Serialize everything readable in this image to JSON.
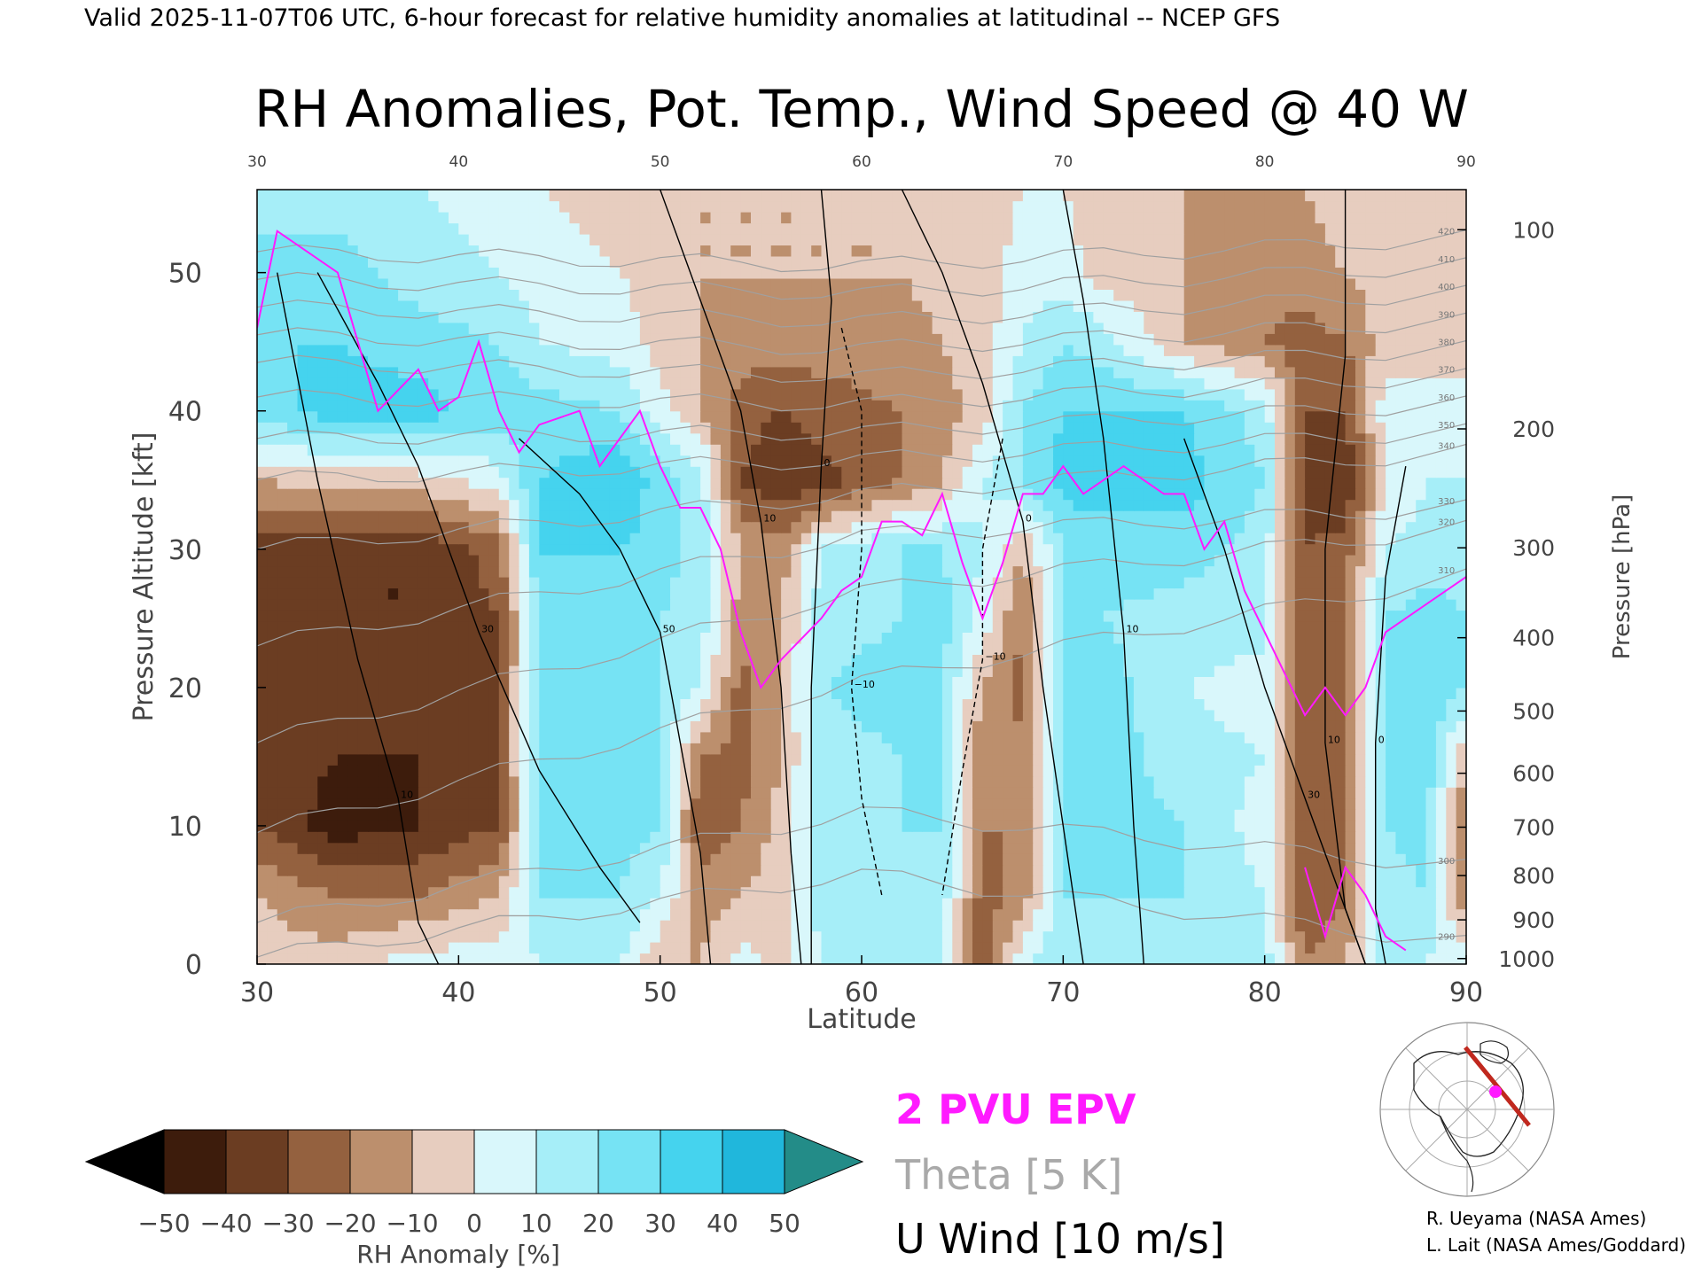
{
  "header": {
    "valid_line": "Valid 2025-11-07T06 UTC, 6-hour forecast for relative humidity anomalies at latitudinal -- NCEP GFS"
  },
  "chart_data": {
    "type": "heatmap",
    "title": "RH Anomalies, Pot. Temp., Wind Speed @ 40 W",
    "xlabel": "Latitude",
    "ylabel_left": "Pressure Altitude [kft]",
    "ylabel_right": "Pressure [hPa]",
    "xlim": [
      30,
      90
    ],
    "ylim": [
      0,
      56
    ],
    "x_ticks": [
      "30",
      "40",
      "50",
      "60",
      "70",
      "80",
      "90"
    ],
    "y_ticks_left": [
      "0",
      "10",
      "20",
      "30",
      "40",
      "50"
    ],
    "y_ticks_right": [
      {
        "label": "100",
        "kft": 53.1
      },
      {
        "label": "200",
        "kft": 38.7
      },
      {
        "label": "300",
        "kft": 30.1
      },
      {
        "label": "400",
        "kft": 23.6
      },
      {
        "label": "500",
        "kft": 18.3
      },
      {
        "label": "600",
        "kft": 13.8
      },
      {
        "label": "700",
        "kft": 9.9
      },
      {
        "label": "800",
        "kft": 6.4
      },
      {
        "label": "900",
        "kft": 3.2
      },
      {
        "label": "1000",
        "kft": 0.4
      }
    ],
    "rh_anomaly_field": {
      "units": "%",
      "lats": [
        30,
        34,
        38,
        42,
        44,
        48,
        50,
        52,
        54,
        56,
        58,
        62,
        64,
        66,
        68,
        70,
        72,
        76,
        80,
        82,
        84,
        86,
        88,
        90
      ],
      "alts": [
        0,
        5,
        10,
        15,
        20,
        25,
        30,
        35,
        40,
        45,
        50,
        56
      ],
      "values": [
        [
          -5,
          -5,
          5,
          5,
          10,
          10,
          -10,
          -10,
          5,
          -5,
          10,
          15,
          10,
          -30,
          10,
          15,
          20,
          15,
          15,
          -20,
          -10,
          15,
          10,
          5
        ],
        [
          -10,
          -20,
          -20,
          -10,
          20,
          20,
          10,
          -15,
          -10,
          -5,
          15,
          20,
          15,
          -25,
          -15,
          20,
          20,
          20,
          10,
          -30,
          -20,
          15,
          20,
          -20
        ],
        [
          -30,
          -45,
          -40,
          -30,
          20,
          25,
          20,
          -30,
          -20,
          -5,
          15,
          20,
          20,
          -20,
          -20,
          25,
          25,
          20,
          5,
          -30,
          -25,
          20,
          25,
          -20
        ],
        [
          -35,
          -40,
          -40,
          -30,
          25,
          20,
          20,
          -20,
          -25,
          -10,
          15,
          20,
          20,
          -20,
          -15,
          25,
          25,
          15,
          10,
          -30,
          -20,
          20,
          25,
          -10
        ],
        [
          -35,
          -40,
          -40,
          -30,
          25,
          20,
          20,
          10,
          -25,
          -10,
          20,
          25,
          20,
          -10,
          -25,
          25,
          25,
          10,
          5,
          -30,
          -20,
          25,
          30,
          20
        ],
        [
          -40,
          -40,
          -40,
          -30,
          20,
          25,
          20,
          15,
          -15,
          -10,
          15,
          20,
          25,
          5,
          -20,
          20,
          20,
          15,
          15,
          -25,
          -20,
          20,
          25,
          20
        ],
        [
          -35,
          -40,
          -40,
          -25,
          30,
          30,
          25,
          15,
          -10,
          -15,
          10,
          20,
          20,
          10,
          -10,
          20,
          25,
          25,
          15,
          -30,
          -25,
          10,
          15,
          15
        ],
        [
          -10,
          -5,
          -5,
          5,
          30,
          40,
          25,
          15,
          -30,
          -40,
          -35,
          -20,
          -10,
          10,
          20,
          35,
          35,
          35,
          20,
          -35,
          -40,
          0,
          10,
          10
        ],
        [
          25,
          35,
          35,
          25,
          25,
          20,
          5,
          -10,
          -25,
          -30,
          -25,
          -20,
          -15,
          -5,
          20,
          30,
          30,
          30,
          15,
          -30,
          -30,
          5,
          5,
          5
        ],
        [
          30,
          30,
          25,
          20,
          10,
          5,
          -5,
          -10,
          -15,
          -15,
          -15,
          -15,
          -10,
          -5,
          10,
          20,
          15,
          -10,
          -20,
          -25,
          -20,
          -5,
          -5,
          -5
        ],
        [
          25,
          25,
          15,
          10,
          5,
          0,
          -5,
          -10,
          -10,
          -10,
          -10,
          -10,
          -5,
          -5,
          5,
          5,
          -5,
          -10,
          -15,
          -15,
          -10,
          -5,
          -5,
          -5
        ],
        [
          15,
          15,
          10,
          5,
          0,
          -5,
          -5,
          -10,
          -10,
          -10,
          -10,
          -10,
          -5,
          -5,
          0,
          0,
          -5,
          -10,
          -10,
          -10,
          -5,
          -5,
          -5,
          -5
        ]
      ]
    },
    "colorbar": {
      "label": "RH Anomaly [%]",
      "tick_labels": [
        "−50",
        "−40",
        "−30",
        "−20",
        "−10",
        "0",
        "10",
        "20",
        "30",
        "40",
        "50"
      ],
      "bins": [
        {
          "lo": -50,
          "hi": -40,
          "color": "#3d1c0c"
        },
        {
          "lo": -40,
          "hi": -30,
          "color": "#6b3d22"
        },
        {
          "lo": -30,
          "hi": -20,
          "color": "#94613f"
        },
        {
          "lo": -20,
          "hi": -10,
          "color": "#bc8f6d"
        },
        {
          "lo": -10,
          "hi": 0,
          "color": "#e7cdbf"
        },
        {
          "lo": 0,
          "hi": 10,
          "color": "#d9f7fb"
        },
        {
          "lo": 10,
          "hi": 20,
          "color": "#a6eef8"
        },
        {
          "lo": 20,
          "hi": 30,
          "color": "#76e3f4"
        },
        {
          "lo": 30,
          "hi": 40,
          "color": "#45d3ee"
        },
        {
          "lo": 40,
          "hi": 50,
          "color": "#20b7dc"
        }
      ],
      "under_color": "#000000",
      "over_color": "#238c88"
    },
    "legend": {
      "pv": {
        "label": "2 PVU EPV",
        "color": "#ff1aff"
      },
      "theta": {
        "label": "Theta [5 K]",
        "color": "#a9a9a9"
      },
      "wind": {
        "label": "U Wind [10 m/s]",
        "color": "#000000"
      }
    },
    "series": [
      {
        "name": "2 PVU EPV",
        "color": "#ff1aff",
        "points": [
          [
            30,
            46
          ],
          [
            31,
            53
          ],
          [
            32,
            52
          ],
          [
            34,
            50
          ],
          [
            35,
            45
          ],
          [
            36,
            40
          ],
          [
            38,
            43
          ],
          [
            39,
            40
          ],
          [
            40,
            41
          ],
          [
            41,
            45
          ],
          [
            42,
            40
          ],
          [
            43,
            37
          ],
          [
            44,
            39
          ],
          [
            46,
            40
          ],
          [
            47,
            36
          ],
          [
            48,
            38
          ],
          [
            49,
            40
          ],
          [
            50,
            36
          ],
          [
            51,
            33
          ],
          [
            52,
            33
          ],
          [
            53,
            30
          ],
          [
            54,
            24
          ],
          [
            55,
            20
          ],
          [
            56,
            22
          ],
          [
            58,
            25
          ],
          [
            59,
            27
          ],
          [
            60,
            28
          ],
          [
            61,
            32
          ],
          [
            62,
            32
          ],
          [
            63,
            31
          ],
          [
            64,
            34
          ],
          [
            65,
            29
          ],
          [
            66,
            25
          ],
          [
            67,
            29
          ],
          [
            68,
            34
          ],
          [
            69,
            34
          ],
          [
            70,
            36
          ],
          [
            71,
            34
          ],
          [
            72,
            35
          ],
          [
            73,
            36
          ],
          [
            74,
            35
          ],
          [
            75,
            34
          ],
          [
            76,
            34
          ],
          [
            77,
            30
          ],
          [
            78,
            32
          ],
          [
            79,
            27
          ],
          [
            80,
            24
          ],
          [
            81,
            21
          ],
          [
            82,
            18
          ],
          [
            83,
            20
          ],
          [
            84,
            18
          ],
          [
            85,
            20
          ],
          [
            86,
            24
          ],
          [
            87,
            25
          ],
          [
            88,
            26
          ],
          [
            89,
            27
          ],
          [
            90,
            28
          ]
        ]
      },
      {
        "name": "2 PVU EPV (lower)",
        "color": "#ff1aff",
        "points": [
          [
            82,
            7
          ],
          [
            83,
            2
          ],
          [
            84,
            7
          ],
          [
            85,
            5
          ],
          [
            86,
            2
          ],
          [
            87,
            1
          ]
        ]
      }
    ],
    "theta_lines": [
      {
        "label": "290",
        "left": 0.5,
        "mid": 6.5,
        "right": 1.5
      },
      {
        "label": "300",
        "left": 3.0,
        "mid": 11.0,
        "right": 7.0
      },
      {
        "label": "310",
        "left": 9.5,
        "mid": 20.5,
        "right": 28.0
      },
      {
        "label": "320",
        "left": 16.0,
        "mid": 27.0,
        "right": 31.5
      },
      {
        "label": "330",
        "left": 23.0,
        "mid": 31.0,
        "right": 33.0
      },
      {
        "label": "340",
        "left": 30.0,
        "mid": 34.0,
        "right": 37.0
      },
      {
        "label": "350",
        "left": 35.0,
        "mid": 36.5,
        "right": 38.5
      },
      {
        "label": "360",
        "left": 38.0,
        "mid": 38.5,
        "right": 40.5
      },
      {
        "label": "370",
        "left": 41.0,
        "mid": 40.5,
        "right": 42.5
      },
      {
        "label": "380",
        "left": 43.5,
        "mid": 42.5,
        "right": 44.5
      },
      {
        "label": "390",
        "left": 45.5,
        "mid": 44.5,
        "right": 46.5
      },
      {
        "label": "400",
        "left": 47.5,
        "mid": 46.5,
        "right": 48.5
      },
      {
        "label": "410",
        "left": 49.5,
        "mid": 48.5,
        "right": 50.5
      },
      {
        "label": "420",
        "left": 51.5,
        "mid": 50.5,
        "right": 52.5
      }
    ],
    "wind_contours": [
      {
        "label": "10",
        "dashed": false,
        "points": [
          [
            31,
            50
          ],
          [
            33,
            35
          ],
          [
            35,
            22
          ],
          [
            37,
            12
          ],
          [
            38,
            3
          ],
          [
            39,
            0
          ]
        ]
      },
      {
        "label": "30",
        "dashed": false,
        "points": [
          [
            33,
            50
          ],
          [
            36,
            42
          ],
          [
            38,
            36
          ],
          [
            41,
            24
          ],
          [
            44,
            14
          ],
          [
            47,
            7
          ],
          [
            49,
            3
          ]
        ]
      },
      {
        "label": "50",
        "dashed": false,
        "points": [
          [
            43,
            38
          ],
          [
            46,
            34
          ],
          [
            48,
            30
          ],
          [
            50,
            24
          ],
          [
            51,
            16
          ],
          [
            52,
            8
          ],
          [
            52.5,
            0
          ]
        ]
      },
      {
        "label": "10",
        "dashed": false,
        "points": [
          [
            50,
            56
          ],
          [
            52,
            48
          ],
          [
            54,
            40
          ],
          [
            55,
            32
          ],
          [
            56,
            20
          ],
          [
            56.5,
            8
          ],
          [
            57,
            0
          ]
        ]
      },
      {
        "label": "0",
        "dashed": false,
        "points": [
          [
            58,
            56
          ],
          [
            58.5,
            48
          ],
          [
            58,
            36
          ],
          [
            57.5,
            20
          ],
          [
            57.5,
            0
          ]
        ]
      },
      {
        "label": "−10",
        "dashed": true,
        "points": [
          [
            59,
            46
          ],
          [
            60,
            40
          ],
          [
            60,
            30
          ],
          [
            59.5,
            20
          ],
          [
            60,
            12
          ],
          [
            61,
            5
          ]
        ]
      },
      {
        "label": "−10",
        "dashed": true,
        "points": [
          [
            67,
            38
          ],
          [
            66,
            30
          ],
          [
            66,
            22
          ],
          [
            65,
            14
          ],
          [
            64,
            5
          ]
        ]
      },
      {
        "label": "0",
        "dashed": false,
        "points": [
          [
            62,
            56
          ],
          [
            64,
            50
          ],
          [
            66,
            42
          ],
          [
            68,
            32
          ],
          [
            69,
            20
          ],
          [
            70,
            10
          ],
          [
            71,
            0
          ]
        ]
      },
      {
        "label": "10",
        "dashed": false,
        "points": [
          [
            70,
            56
          ],
          [
            71,
            48
          ],
          [
            72,
            38
          ],
          [
            73,
            24
          ],
          [
            73.5,
            10
          ],
          [
            74,
            0
          ]
        ]
      },
      {
        "label": "30",
        "dashed": false,
        "points": [
          [
            76,
            38
          ],
          [
            78,
            30
          ],
          [
            80,
            20
          ],
          [
            82,
            12
          ],
          [
            84,
            4
          ],
          [
            85,
            0
          ]
        ]
      },
      {
        "label": "10",
        "dashed": false,
        "points": [
          [
            84,
            56
          ],
          [
            84,
            44
          ],
          [
            83,
            30
          ],
          [
            83,
            16
          ],
          [
            84,
            4
          ],
          [
            85,
            0
          ]
        ]
      },
      {
        "label": "0",
        "dashed": false,
        "points": [
          [
            87,
            36
          ],
          [
            86,
            28
          ],
          [
            85.5,
            16
          ],
          [
            85.5,
            4
          ],
          [
            86,
            0
          ]
        ]
      }
    ]
  },
  "credits": {
    "line1": "R. Ueyama (NASA Ames)",
    "line2": "L. Lait (NASA Ames/Goddard)"
  }
}
